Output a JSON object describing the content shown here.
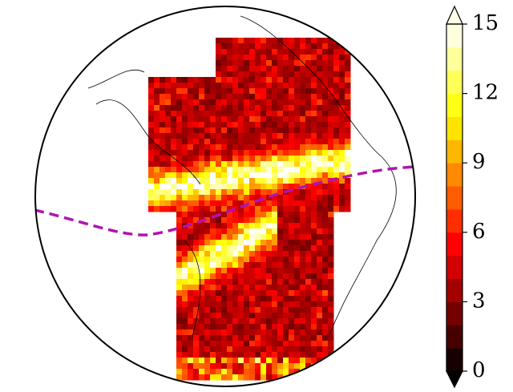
{
  "colorbar": {
    "lim": [
      0,
      15
    ],
    "ticks": [
      0,
      3,
      6,
      9,
      12,
      15
    ],
    "extend": "both",
    "colormap": "hot"
  }
}
